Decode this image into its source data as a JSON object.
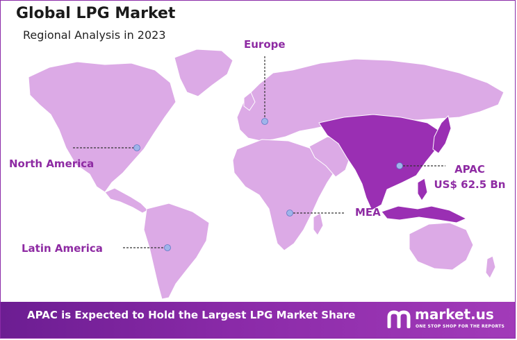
{
  "header": {
    "title": "Global LPG Market",
    "subtitle": "Regional Analysis in 2023"
  },
  "regions": {
    "europe": "Europe",
    "north_america": "North America",
    "latin_america": "Latin America",
    "mea": "MEA",
    "apac": "APAC",
    "apac_value": "US$ 62.5 Bn"
  },
  "footer": {
    "headline": "APAC is Expected to Hold the Largest LPG Market Share",
    "brand": "market.us",
    "tagline": "ONE STOP SHOP FOR THE REPORTS"
  },
  "colors": {
    "land": "#dcaae6",
    "highlight": "#9a2fb3",
    "accent": "#8e2ba3",
    "marker": "#9fb4ea"
  },
  "highlighted_region": "APAC"
}
